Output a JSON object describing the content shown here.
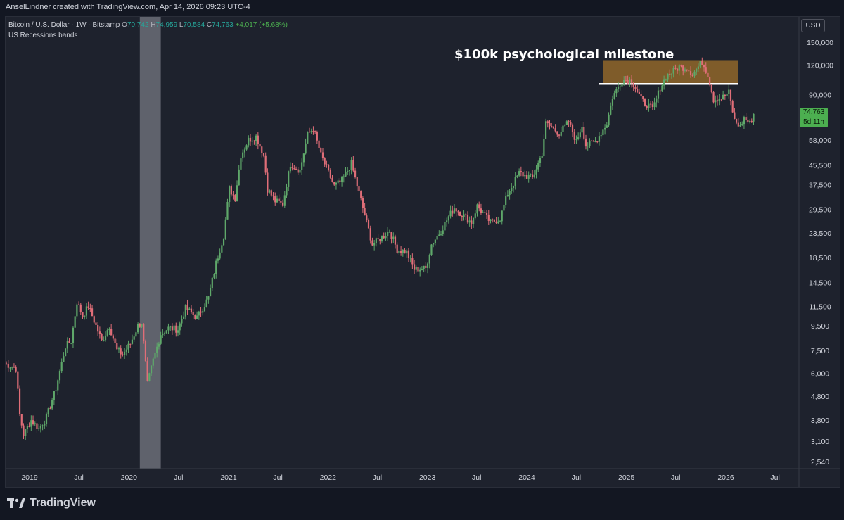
{
  "header": {
    "attribution": "AnselLindner created with TradingView.com, Apr 14, 2026 09:23 UTC-4"
  },
  "legend": {
    "symbol": "Bitcoin / U.S. Dollar · 1W · Bitstamp",
    "open_label": "O",
    "open": "70,742",
    "high_label": "H",
    "high": "74,959",
    "low_label": "L",
    "low": "70,584",
    "close_label": "C",
    "close": "74,763",
    "change": "+4,017 (+5.68%)",
    "indicator": "US Recessions bands"
  },
  "currency": "USD",
  "price_badge": {
    "price": "74,763",
    "countdown": "5d 11h"
  },
  "footer": {
    "brand": "TradingView"
  },
  "colors": {
    "up": "#26a69a",
    "down": "#ef5350",
    "up_candle": "#5fa86a",
    "down_candle": "#e06e78",
    "background": "#1e222d",
    "recession": "#9598a1",
    "milestone_box": "#a0702a"
  },
  "chart_data": {
    "type": "candlestick",
    "title": "Bitcoin / U.S. Dollar · 1W · Bitstamp",
    "scale": "log",
    "y_ticks": [
      150000,
      120000,
      90000,
      74763,
      58000,
      45500,
      37500,
      29500,
      23500,
      18500,
      14500,
      11500,
      9500,
      7500,
      6000,
      4800,
      3800,
      3100,
      2540
    ],
    "y_tick_labels": [
      "150,000",
      "120,000",
      "90,000",
      "74,763",
      "58,000",
      "45,500",
      "37,500",
      "29,500",
      "23,500",
      "18,500",
      "14,500",
      "11,500",
      "9,500",
      "7,500",
      "6,000",
      "4,800",
      "3,800",
      "3,100",
      "2,540"
    ],
    "x_ticks": [
      "2019",
      "Jul",
      "2020",
      "Jul",
      "2021",
      "Jul",
      "2022",
      "Jul",
      "2023",
      "Jul",
      "2024",
      "Jul",
      "2025",
      "Jul",
      "2026",
      "Jul"
    ],
    "x_tick_dates": [
      "2019-01-01",
      "2019-07-01",
      "2020-01-01",
      "2020-07-01",
      "2021-01-01",
      "2021-07-01",
      "2022-01-01",
      "2022-07-01",
      "2023-01-01",
      "2023-07-01",
      "2024-01-01",
      "2024-07-01",
      "2025-01-01",
      "2025-07-01",
      "2026-01-01",
      "2026-07-01"
    ],
    "recession_band": {
      "start": "2020-02-10",
      "end": "2020-04-27"
    },
    "annotation": {
      "text": "$100k psychological milestone",
      "level": 100000,
      "box_start": "2024-09-23",
      "box_end": "2026-02-16",
      "box_low": 100000,
      "box_high": 126000
    },
    "weekly_close_path": [
      [
        "2018-10-01",
        6600
      ],
      [
        "2018-11-12",
        6300
      ],
      [
        "2018-11-26",
        4000
      ],
      [
        "2018-12-10",
        3300
      ],
      [
        "2019-01-07",
        3800
      ],
      [
        "2019-02-04",
        3500
      ],
      [
        "2019-03-04",
        3900
      ],
      [
        "2019-04-08",
        5200
      ],
      [
        "2019-05-13",
        7800
      ],
      [
        "2019-06-03",
        8200
      ],
      [
        "2019-06-24",
        12000
      ],
      [
        "2019-07-15",
        10500
      ],
      [
        "2019-08-05",
        11500
      ],
      [
        "2019-08-26",
        10000
      ],
      [
        "2019-09-23",
        8200
      ],
      [
        "2019-10-21",
        9500
      ],
      [
        "2019-11-18",
        7500
      ],
      [
        "2019-12-09",
        7200
      ],
      [
        "2020-01-06",
        8000
      ],
      [
        "2020-02-03",
        9500
      ],
      [
        "2020-02-17",
        9800
      ],
      [
        "2020-03-09",
        5400
      ],
      [
        "2020-03-30",
        6800
      ],
      [
        "2020-04-27",
        8800
      ],
      [
        "2020-05-25",
        9300
      ],
      [
        "2020-06-29",
        9200
      ],
      [
        "2020-07-27",
        11300
      ],
      [
        "2020-09-07",
        10300
      ],
      [
        "2020-10-19",
        12500
      ],
      [
        "2020-11-16",
        17500
      ],
      [
        "2020-12-14",
        23000
      ],
      [
        "2021-01-04",
        36000
      ],
      [
        "2021-01-25",
        33000
      ],
      [
        "2021-02-15",
        50000
      ],
      [
        "2021-03-15",
        58000
      ],
      [
        "2021-04-12",
        60000
      ],
      [
        "2021-05-10",
        50000
      ],
      [
        "2021-05-24",
        36000
      ],
      [
        "2021-06-21",
        32000
      ],
      [
        "2021-07-19",
        31000
      ],
      [
        "2021-08-16",
        46000
      ],
      [
        "2021-09-20",
        43000
      ],
      [
        "2021-10-18",
        61000
      ],
      [
        "2021-11-08",
        65000
      ],
      [
        "2021-12-06",
        50000
      ],
      [
        "2022-01-24",
        37000
      ],
      [
        "2022-02-21",
        39000
      ],
      [
        "2022-03-28",
        46000
      ],
      [
        "2022-05-09",
        30000
      ],
      [
        "2022-06-13",
        21000
      ],
      [
        "2022-07-18",
        22500
      ],
      [
        "2022-08-15",
        24000
      ],
      [
        "2022-09-12",
        20000
      ],
      [
        "2022-10-17",
        19500
      ],
      [
        "2022-11-14",
        16500
      ],
      [
        "2022-12-26",
        16600
      ],
      [
        "2023-01-16",
        21000
      ],
      [
        "2023-02-20",
        24000
      ],
      [
        "2023-03-20",
        27500
      ],
      [
        "2023-04-10",
        30000
      ],
      [
        "2023-06-12",
        26000
      ],
      [
        "2023-07-03",
        30500
      ],
      [
        "2023-08-21",
        26000
      ],
      [
        "2023-09-25",
        27000
      ],
      [
        "2023-10-23",
        34500
      ],
      [
        "2023-12-04",
        42000
      ],
      [
        "2024-01-22",
        40000
      ],
      [
        "2024-02-26",
        51000
      ],
      [
        "2024-03-11",
        68000
      ],
      [
        "2024-04-29",
        62000
      ],
      [
        "2024-06-03",
        69000
      ],
      [
        "2024-07-01",
        57000
      ],
      [
        "2024-07-22",
        67000
      ],
      [
        "2024-08-05",
        55000
      ],
      [
        "2024-09-09",
        57000
      ],
      [
        "2024-10-21",
        68000
      ],
      [
        "2024-11-11",
        88000
      ],
      [
        "2024-12-16",
        104000
      ],
      [
        "2025-01-20",
        104000
      ],
      [
        "2025-02-24",
        86000
      ],
      [
        "2025-03-10",
        83000
      ],
      [
        "2025-04-07",
        78000
      ],
      [
        "2025-05-05",
        96000
      ],
      [
        "2025-05-26",
        108000
      ],
      [
        "2025-07-14",
        118000
      ],
      [
        "2025-08-11",
        117000
      ],
      [
        "2025-09-01",
        110000
      ],
      [
        "2025-10-06",
        124000
      ],
      [
        "2025-10-27",
        110000
      ],
      [
        "2025-11-17",
        86000
      ],
      [
        "2025-12-22",
        88000
      ],
      [
        "2026-01-12",
        92000
      ],
      [
        "2026-02-02",
        70000
      ],
      [
        "2026-02-23",
        66000
      ],
      [
        "2026-03-09",
        72000
      ],
      [
        "2026-03-30",
        68000
      ],
      [
        "2026-04-13",
        74763
      ]
    ]
  }
}
